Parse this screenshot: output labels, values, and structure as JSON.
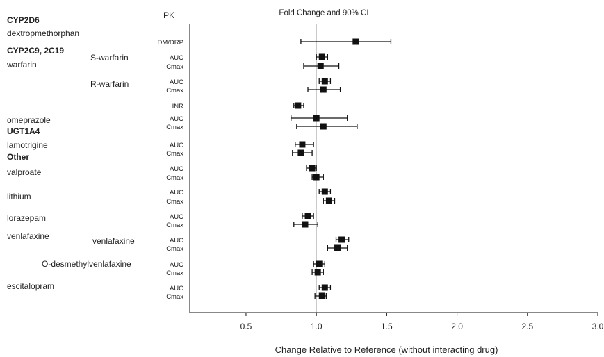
{
  "chart_data": {
    "type": "forest",
    "title": "Fold Change and 90% CI",
    "pk_header": "PK",
    "xlabel": "Change Relative to Reference (without interacting drug)",
    "xlim": [
      0.1,
      3.0
    ],
    "xticks": [
      "0.5",
      "1.0",
      "1.5",
      "2.0",
      "2.5",
      "3.0"
    ],
    "xtick_values": [
      0.5,
      1.0,
      1.5,
      2.0,
      2.5,
      3.0
    ],
    "reference_line": 1.0,
    "colors": {
      "marker": "#111111",
      "line": "#111111",
      "ref_line": "#bbbbbb",
      "axis": "#111111"
    },
    "groups": [
      {
        "label": "CYP2D6",
        "bold": true
      },
      {
        "label": "dextropmethorphan",
        "bold": false
      },
      {
        "label": "CYP2C9, 2C19",
        "bold": true
      },
      {
        "label": "warfarin",
        "bold": false
      },
      {
        "label": "S-warfarin",
        "bold": false
      },
      {
        "label": "R-warfarin",
        "bold": false
      },
      {
        "label": "omeprazole",
        "bold": false
      },
      {
        "label": "UGT1A4",
        "bold": true
      },
      {
        "label": "lamotrigine",
        "bold": false
      },
      {
        "label": "Other",
        "bold": true
      },
      {
        "label": "valproate",
        "bold": false
      },
      {
        "label": "lithium",
        "bold": false
      },
      {
        "label": "lorazepam",
        "bold": false
      },
      {
        "label": "venlafaxine",
        "bold": false
      },
      {
        "label": "venlafaxine",
        "bold": false
      },
      {
        "label": "O-desmethylvenlafaxine",
        "bold": false
      },
      {
        "label": "escitalopram",
        "bold": false
      }
    ],
    "rows": [
      {
        "pk": "DM/DRP",
        "value": 1.28,
        "lo": 0.89,
        "hi": 1.53
      },
      {
        "pk": "AUC",
        "value": 1.04,
        "lo": 1.0,
        "hi": 1.08
      },
      {
        "pk": "Cmax",
        "value": 1.03,
        "lo": 0.91,
        "hi": 1.16
      },
      {
        "pk": "AUC",
        "value": 1.06,
        "lo": 1.02,
        "hi": 1.1
      },
      {
        "pk": "Cmax",
        "value": 1.05,
        "lo": 0.94,
        "hi": 1.17
      },
      {
        "pk": "INR",
        "value": 0.87,
        "lo": 0.84,
        "hi": 0.91
      },
      {
        "pk": "AUC",
        "value": 1.0,
        "lo": 0.82,
        "hi": 1.22
      },
      {
        "pk": "Cmax",
        "value": 1.05,
        "lo": 0.86,
        "hi": 1.29
      },
      {
        "pk": "AUC",
        "value": 0.9,
        "lo": 0.85,
        "hi": 0.98
      },
      {
        "pk": "Cmax",
        "value": 0.89,
        "lo": 0.83,
        "hi": 0.97
      },
      {
        "pk": "AUC",
        "value": 0.97,
        "lo": 0.93,
        "hi": 1.0
      },
      {
        "pk": "Cmax",
        "value": 1.0,
        "lo": 0.97,
        "hi": 1.05
      },
      {
        "pk": "AUC",
        "value": 1.06,
        "lo": 1.02,
        "hi": 1.1
      },
      {
        "pk": "Cmax",
        "value": 1.09,
        "lo": 1.05,
        "hi": 1.13
      },
      {
        "pk": "AUC",
        "value": 0.94,
        "lo": 0.9,
        "hi": 0.98
      },
      {
        "pk": "Cmax",
        "value": 0.92,
        "lo": 0.84,
        "hi": 1.01
      },
      {
        "pk": "AUC",
        "value": 1.18,
        "lo": 1.14,
        "hi": 1.23
      },
      {
        "pk": "Cmax",
        "value": 1.15,
        "lo": 1.08,
        "hi": 1.22
      },
      {
        "pk": "AUC",
        "value": 1.02,
        "lo": 0.98,
        "hi": 1.06
      },
      {
        "pk": "Cmax",
        "value": 1.01,
        "lo": 0.97,
        "hi": 1.05
      },
      {
        "pk": "AUC",
        "value": 1.06,
        "lo": 1.02,
        "hi": 1.1
      },
      {
        "pk": "Cmax",
        "value": 1.04,
        "lo": 0.99,
        "hi": 1.07
      }
    ]
  }
}
